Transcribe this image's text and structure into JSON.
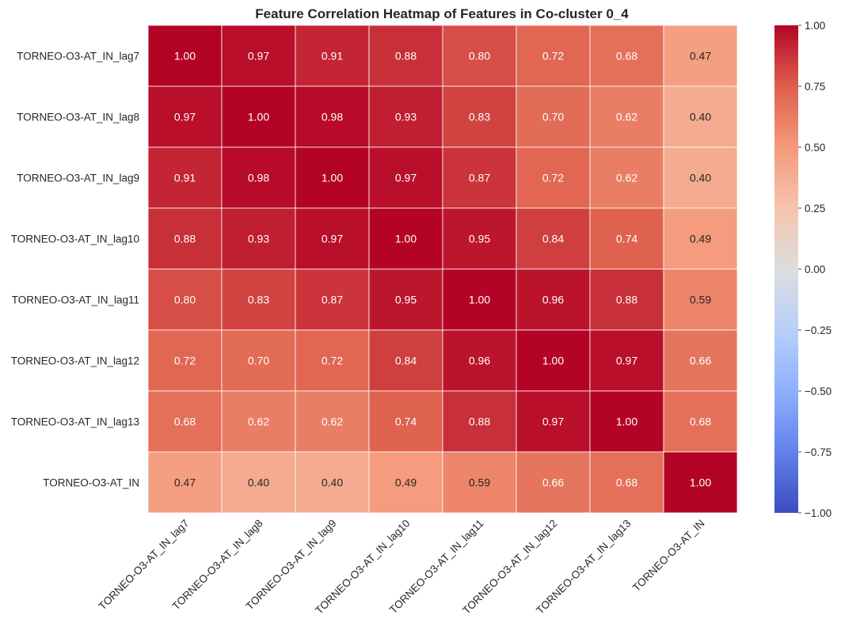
{
  "chart_data": {
    "type": "heatmap",
    "title": "Feature Correlation Heatmap of Features in Co-cluster 0_4",
    "row_labels": [
      "TORNEO-O3-AT_IN_lag7",
      "TORNEO-O3-AT_IN_lag8",
      "TORNEO-O3-AT_IN_lag9",
      "TORNEO-O3-AT_IN_lag10",
      "TORNEO-O3-AT_IN_lag11",
      "TORNEO-O3-AT_IN_lag12",
      "TORNEO-O3-AT_IN_lag13",
      "TORNEO-O3-AT_IN"
    ],
    "col_labels": [
      "TORNEO-O3-AT_IN_lag7",
      "TORNEO-O3-AT_IN_lag8",
      "TORNEO-O3-AT_IN_lag9",
      "TORNEO-O3-AT_IN_lag10",
      "TORNEO-O3-AT_IN_lag11",
      "TORNEO-O3-AT_IN_lag12",
      "TORNEO-O3-AT_IN_lag13",
      "TORNEO-O3-AT_IN"
    ],
    "values": [
      [
        1.0,
        0.97,
        0.91,
        0.88,
        0.8,
        0.72,
        0.68,
        0.47
      ],
      [
        0.97,
        1.0,
        0.98,
        0.93,
        0.83,
        0.7,
        0.62,
        0.4
      ],
      [
        0.91,
        0.98,
        1.0,
        0.97,
        0.87,
        0.72,
        0.62,
        0.4
      ],
      [
        0.88,
        0.93,
        0.97,
        1.0,
        0.95,
        0.84,
        0.74,
        0.49
      ],
      [
        0.8,
        0.83,
        0.87,
        0.95,
        1.0,
        0.96,
        0.88,
        0.59
      ],
      [
        0.72,
        0.7,
        0.72,
        0.84,
        0.96,
        1.0,
        0.97,
        0.66
      ],
      [
        0.68,
        0.62,
        0.62,
        0.74,
        0.88,
        0.97,
        1.0,
        0.68
      ],
      [
        0.47,
        0.4,
        0.4,
        0.49,
        0.59,
        0.66,
        0.68,
        1.0
      ]
    ],
    "colorscale": "coolwarm",
    "vmin": -1.0,
    "vmax": 1.0,
    "colorbar_ticks": [
      "1.00",
      "0.75",
      "0.50",
      "0.25",
      "0.00",
      "−0.25",
      "−0.50",
      "−0.75",
      "−1.00"
    ],
    "colorbar_tick_values": [
      1.0,
      0.75,
      0.5,
      0.25,
      0.0,
      -0.25,
      -0.5,
      -0.75,
      -1.0
    ],
    "annotations": "values shown in each cell with 2 decimals",
    "grid": false
  }
}
